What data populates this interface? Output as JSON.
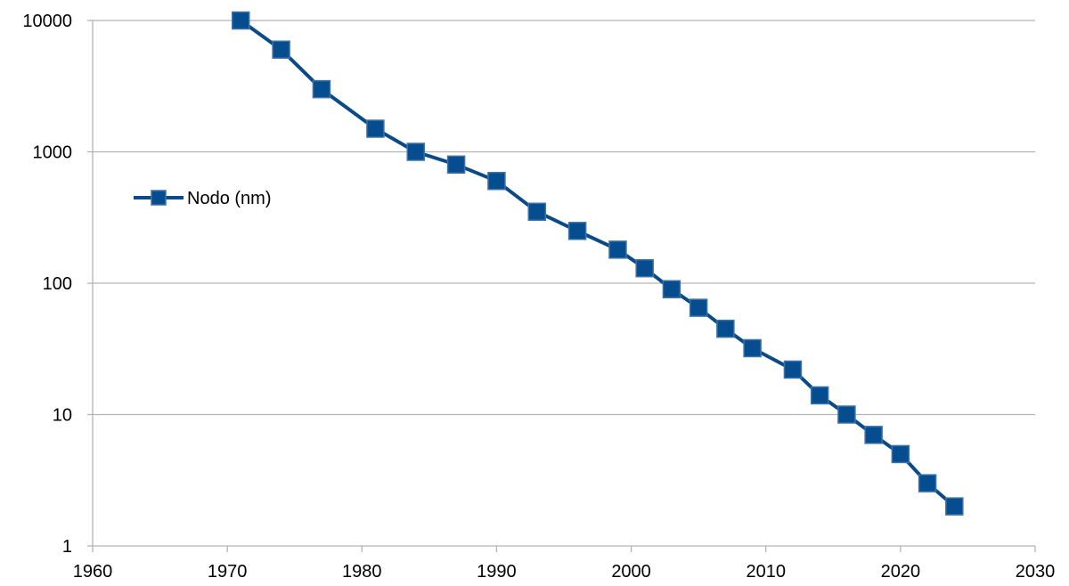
{
  "chart_data": {
    "type": "line",
    "title": "",
    "xlabel": "",
    "ylabel": "",
    "xlim": [
      1960,
      2030
    ],
    "ylim": [
      1,
      10000
    ],
    "yscale": "log",
    "x_ticks": [
      1960,
      1970,
      1980,
      1990,
      2000,
      2010,
      2020,
      2030
    ],
    "y_ticks": [
      1,
      10,
      100,
      1000,
      10000
    ],
    "x_tick_labels": [
      "1960",
      "1970",
      "1980",
      "1990",
      "2000",
      "2010",
      "2020",
      "2030"
    ],
    "y_tick_labels": [
      "1",
      "10",
      "100",
      "1000",
      "10000"
    ],
    "grid": "horizontal",
    "legend": "left",
    "series": [
      {
        "name": "Nodo (nm)",
        "color": "#0a4a87",
        "marker_color": "#064d8f",
        "marker": "square",
        "x": [
          1971,
          1974,
          1977,
          1981,
          1984,
          1987,
          1990,
          1993,
          1996,
          1999,
          2001,
          2003,
          2005,
          2007,
          2009,
          2012,
          2014,
          2016,
          2018,
          2020,
          2022,
          2024
        ],
        "y": [
          10000,
          6000,
          3000,
          1500,
          1000,
          800,
          600,
          350,
          250,
          180,
          130,
          90,
          65,
          45,
          32,
          22,
          14,
          10,
          7,
          5,
          3,
          2
        ]
      }
    ]
  }
}
